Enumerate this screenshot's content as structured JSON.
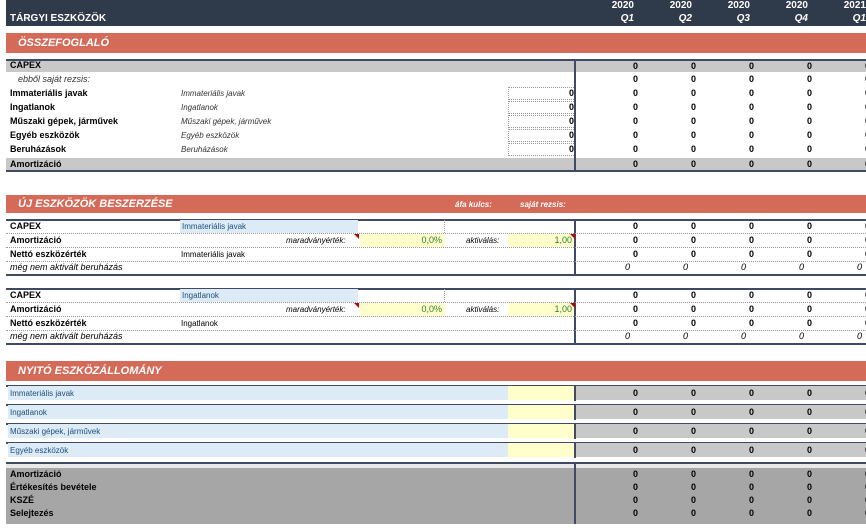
{
  "header": {
    "title": "TÁRGYI ESZKÖZÖK",
    "columns": [
      {
        "year": "2020",
        "quarter": "Q1"
      },
      {
        "year": "2020",
        "quarter": "Q2"
      },
      {
        "year": "2020",
        "quarter": "Q3"
      },
      {
        "year": "2020",
        "quarter": "Q4"
      },
      {
        "year": "2021",
        "quarter": "Q1"
      }
    ]
  },
  "summary": {
    "section_title": "ÖSSZEFOGLALÓ",
    "capex": "CAPEX",
    "sajat": "ebből saját rezsis:",
    "rows": [
      {
        "label": "Immateriális javak",
        "sub": "Immateriális javak",
        "input": "0"
      },
      {
        "label": "Ingatlanok",
        "sub": "Ingatlanok",
        "input": "0"
      },
      {
        "label": "Műszaki gépek, járművek",
        "sub": "Műszaki gépek, járművek",
        "input": "0"
      },
      {
        "label": "Egyéb eszközök",
        "sub": "Egyéb eszközök",
        "input": "0"
      },
      {
        "label": "Beruházások",
        "sub": "Beruházások",
        "input": "0"
      }
    ],
    "amort": "Amortizáció",
    "zero": "0"
  },
  "acquisitions": {
    "section_title": "ÚJ ESZKÖZÖK BESZERZÉSE",
    "afa": "áfa kulcs:",
    "sajat": "saját rezsis:",
    "blocks": [
      {
        "capex": "CAPEX",
        "asset": "Immateriális javak",
        "amort": "Amortizáció",
        "marad": "maradványérték:",
        "marad_val": "0,0%",
        "aktiv": "aktiválás:",
        "aktiv_val": "1,00",
        "netto": "Nettó eszközérték",
        "netto_sub": "Immateriális javak",
        "meg": "még nem aktivált beruházás"
      },
      {
        "capex": "CAPEX",
        "asset": "Ingatlanok",
        "amort": "Amortizáció",
        "marad": "maradványérték:",
        "marad_val": "0,0%",
        "aktiv": "aktiválás:",
        "aktiv_val": "1,00",
        "netto": "Nettó eszközérték",
        "netto_sub": "Ingatlanok",
        "meg": "még nem aktivált beruházás"
      }
    ]
  },
  "opening": {
    "section_title": "NYITÓ ESZKÖZÁLLOMÁNY",
    "assets": [
      "Immateriális javak",
      "Ingatlanok",
      "Műszaki gépek, járművek",
      "Egyéb eszközök"
    ],
    "bottom": [
      "Amortizáció",
      "Értékesítés bevétele",
      "KSZÉ",
      "Selejtezés"
    ]
  }
}
